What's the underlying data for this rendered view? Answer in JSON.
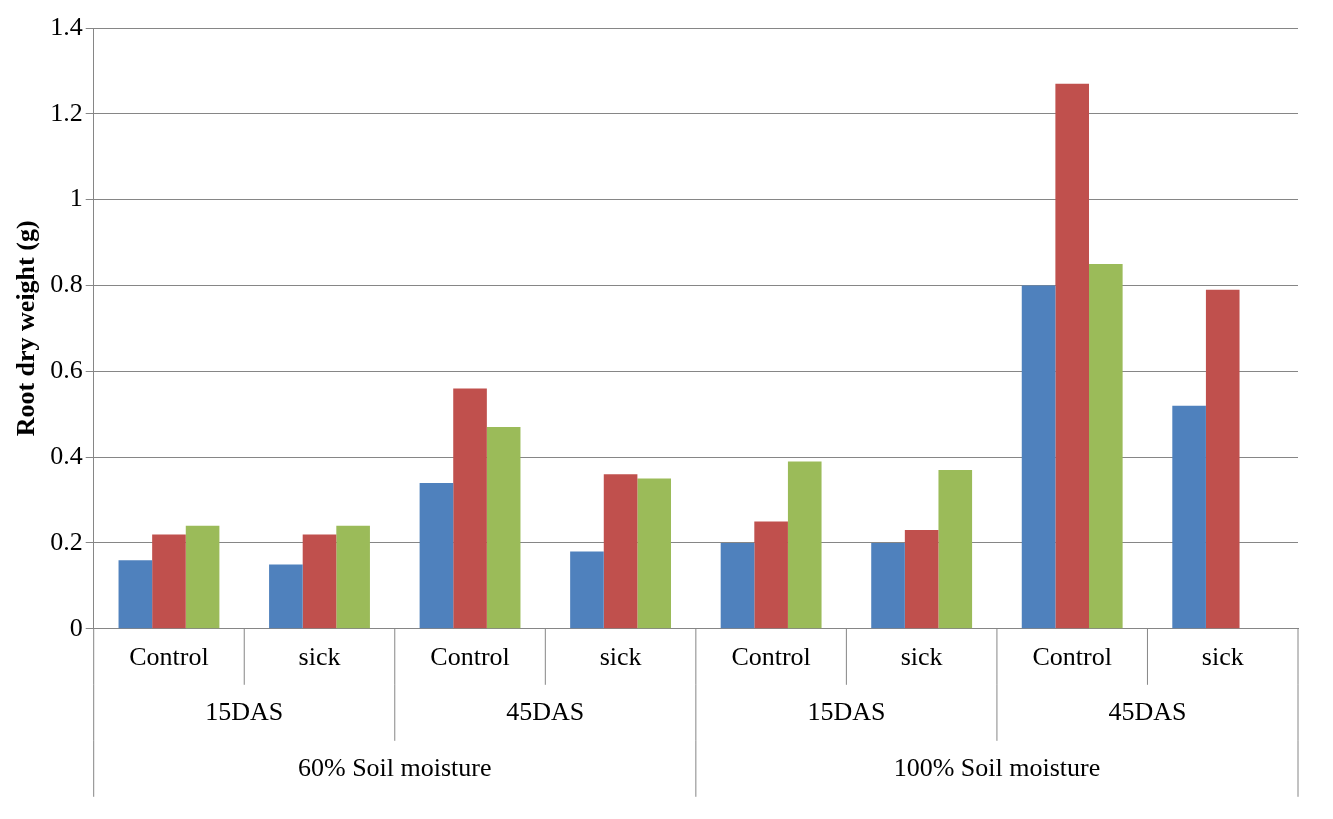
{
  "chart_data": {
    "type": "bar",
    "ylabel": "Root dry weight (g)",
    "categories": [
      "Control",
      "sick",
      "Control",
      "sick",
      "Control",
      "sick",
      "Control",
      "sick"
    ],
    "series": [
      {
        "color": "#4f81bd",
        "values": [
          0.16,
          0.15,
          0.34,
          0.18,
          0.2,
          0.2,
          0.8,
          0.52
        ]
      },
      {
        "color": "#c0504d",
        "values": [
          0.22,
          0.22,
          0.56,
          0.36,
          0.25,
          0.23,
          1.27,
          0.79
        ]
      },
      {
        "color": "#9bbb59",
        "values": [
          0.24,
          0.24,
          0.47,
          0.35,
          0.39,
          0.37,
          0.85,
          null
        ]
      }
    ],
    "annotations": [
      "15DAS",
      "45DAS",
      "15DAS",
      "45DAS",
      "60% Soil moisture",
      "100% Soil moisture"
    ],
    "ylim": [
      0,
      1.4
    ],
    "yticks": [
      0,
      0.2,
      0.4,
      0.6,
      0.8,
      1,
      1.2,
      1.4
    ],
    "grid": "y",
    "legend": false
  }
}
